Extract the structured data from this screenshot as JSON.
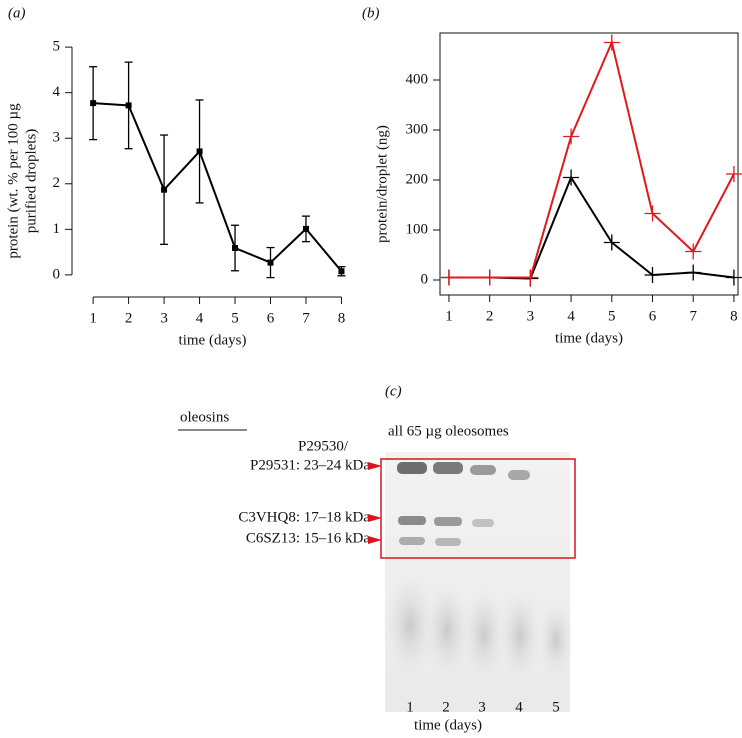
{
  "chart_data": [
    {
      "type": "line",
      "title": "(a)",
      "xlabel": "time (days)",
      "ylabel": [
        "protein (wt. % per 100 µg",
        "purified droplets)"
      ],
      "x": [
        1,
        2,
        3,
        4,
        5,
        6,
        7,
        8
      ],
      "series": [
        {
          "color": "#000000",
          "marker": "square",
          "values": [
            3.77,
            3.72,
            1.87,
            2.71,
            0.59,
            0.27,
            1.01,
            0.08
          ],
          "errors": [
            0.8,
            0.95,
            1.2,
            1.13,
            0.5,
            0.33,
            0.28,
            0.1
          ]
        }
      ],
      "xlim": [
        0.63,
        8.1
      ],
      "xticks": [
        1,
        2,
        3,
        4,
        5,
        6,
        7,
        8
      ],
      "ylim": [
        -0.2,
        5.2
      ],
      "yticks": [
        0,
        1,
        2,
        3,
        4,
        5
      ]
    },
    {
      "type": "line",
      "title": "(b)",
      "xlabel": "time (days)",
      "ylabel": [
        "protein/droplet (ng)"
      ],
      "x": [
        1,
        2,
        3,
        4,
        5,
        6,
        7,
        8
      ],
      "series": [
        {
          "color": "#000000",
          "marker": "plus",
          "values": [
            5,
            5,
            3,
            205,
            75,
            10,
            15,
            5
          ]
        },
        {
          "color": "#e0191d",
          "marker": "plus",
          "values": [
            5,
            5,
            5,
            287,
            475,
            133,
            57,
            212
          ]
        }
      ],
      "xlim": [
        0.78,
        8.1
      ],
      "xticks": [
        1,
        2,
        3,
        4,
        5,
        6,
        7,
        8
      ],
      "ylim": [
        -30,
        494
      ],
      "yticks": [
        0,
        100,
        200,
        300,
        400
      ]
    }
  ],
  "gel": {
    "title": "(c)",
    "heading": "oleosins",
    "caption": "all 65 µg oleosomes",
    "bands": [
      "P29530/",
      "P29531: 23–24 kDa",
      "C3VHQ8: 17–18 kDa",
      "C6SZ13: 15–16 kDa"
    ],
    "lanes": [
      "1",
      "2",
      "3",
      "4",
      "5"
    ],
    "xlabel": "time (days)"
  }
}
